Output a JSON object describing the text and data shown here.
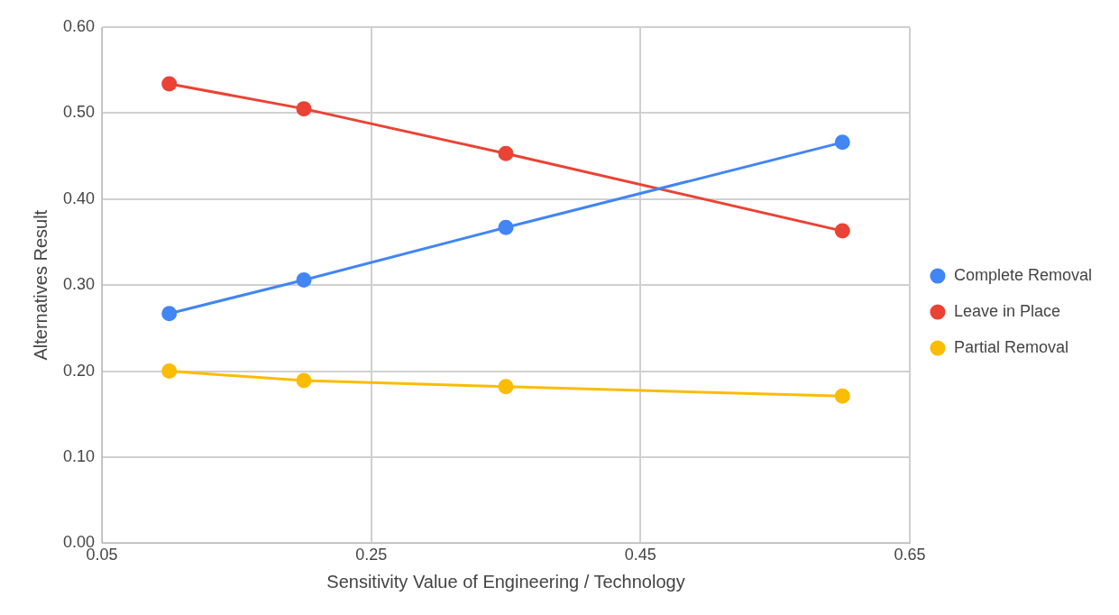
{
  "chart_data": {
    "type": "line",
    "xlabel": "Sensitivity Value of Engineering / Technology",
    "ylabel": "Alternatives Result",
    "x": [
      0.1,
      0.2,
      0.35,
      0.6
    ],
    "xlim": [
      0.05,
      0.65
    ],
    "xticks": [
      {
        "value": 0.05,
        "label": "0.05"
      },
      {
        "value": 0.25,
        "label": "0.25"
      },
      {
        "value": 0.45,
        "label": "0.45"
      },
      {
        "value": 0.65,
        "label": "0.65"
      }
    ],
    "ylim": [
      0,
      0.6
    ],
    "yticks": [
      {
        "value": 0,
        "label": "0.00"
      },
      {
        "value": 0.1,
        "label": "0.10"
      },
      {
        "value": 0.2,
        "label": "0.20"
      },
      {
        "value": 0.3,
        "label": "0.30"
      },
      {
        "value": 0.4,
        "label": "0.40"
      },
      {
        "value": 0.5,
        "label": "0.50"
      },
      {
        "value": 0.6,
        "label": "0.60"
      }
    ],
    "series": [
      {
        "name": "Complete Removal",
        "color": "#4285f4",
        "values": [
          0.267,
          0.306,
          0.367,
          0.466
        ]
      },
      {
        "name": "Leave in Place",
        "color": "#ea4335",
        "values": [
          0.534,
          0.505,
          0.453,
          0.363
        ]
      },
      {
        "name": "Partial Removal",
        "color": "#fbbc04",
        "values": [
          0.2,
          0.189,
          0.182,
          0.171
        ]
      }
    ],
    "grid": true,
    "legend": "right",
    "marker": "circle",
    "line_style": "solid"
  }
}
